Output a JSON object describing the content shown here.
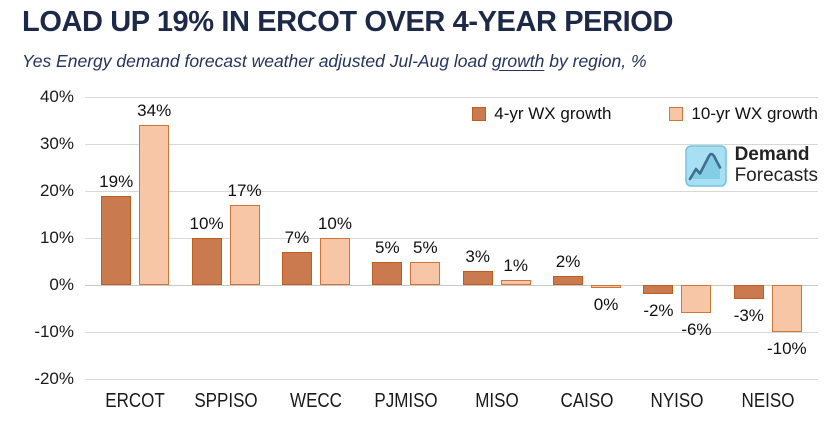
{
  "header": {
    "title": "LOAD UP 19% IN ERCOT OVER 4-YEAR PERIOD",
    "subtitle_prefix": "Yes Energy demand forecast weather adjusted Jul-Aug load ",
    "subtitle_underlined": "growth",
    "subtitle_suffix": " by region, %"
  },
  "logo": {
    "line1": "Demand",
    "line2": "Forecasts"
  },
  "colors": {
    "title_navy": "#1D2949",
    "gridline": "#D8D8D8",
    "bar_4yr_fill": "#CA7A4F",
    "bar_4yr_stroke": "#C05C1F",
    "bar_10yr_fill": "#F7C6A7",
    "bar_10yr_stroke": "#D0743A",
    "logo_square": "#A8DFF2",
    "logo_line": "#3E6F8E"
  },
  "chart_data": {
    "type": "bar",
    "categories": [
      "ERCOT",
      "SPPISO",
      "WECC",
      "PJMISO",
      "MISO",
      "CAISO",
      "NYISO",
      "NEISO"
    ],
    "series": [
      {
        "name": "4-yr WX growth",
        "values": [
          19,
          10,
          7,
          5,
          3,
          2,
          -2,
          -3
        ],
        "labels": [
          "19%",
          "10%",
          "7%",
          "5%",
          "3%",
          "2%",
          "-2%",
          "-3%"
        ],
        "fill": "#CA7A4F",
        "stroke": "#C05C1F"
      },
      {
        "name": "10-yr WX growth",
        "values": [
          34,
          17,
          10,
          5,
          1,
          0,
          -6,
          -10
        ],
        "labels": [
          "34%",
          "17%",
          "10%",
          "5%",
          "1%",
          "0%",
          "-6%",
          "-10%"
        ],
        "fill": "#F7C6A7",
        "stroke": "#D0743A"
      }
    ],
    "y_ticks": [
      {
        "label": "40%",
        "value": 40
      },
      {
        "label": "30%",
        "value": 30
      },
      {
        "label": "20%",
        "value": 20
      },
      {
        "label": "10%",
        "value": 10
      },
      {
        "label": "0%",
        "value": 0
      },
      {
        "label": "-10%",
        "value": -10
      },
      {
        "label": "-20%",
        "value": -20
      }
    ],
    "ylim": [
      -20,
      40
    ],
    "grid": true,
    "legend_position": "top-right",
    "title": "LOAD UP 19% IN ERCOT OVER 4-YEAR PERIOD",
    "xlabel": "",
    "ylabel": ""
  }
}
